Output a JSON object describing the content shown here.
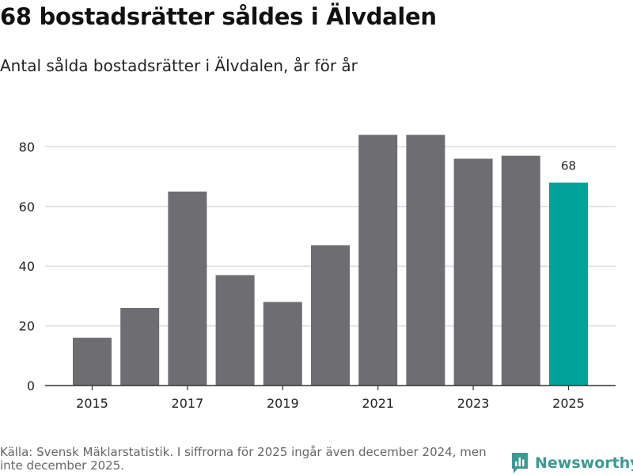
{
  "header": {
    "title": "68 bostadsrätter såldes i Älvdalen",
    "subtitle": "Antal sålda bostadsrätter i Älvdalen, år för år"
  },
  "footer": {
    "source": "Källa: Svensk Mäklarstatistik. I siffrorna för 2025 ingår även december 2024, men inte december 2025.",
    "brand": "Newsworthy"
  },
  "colors": {
    "bar": "#6d6d72",
    "highlight": "#00a39a",
    "grid": "#dddddd",
    "axis": "#333333",
    "brand": "#3c9a92"
  },
  "chart_data": {
    "type": "bar",
    "title": "68 bostadsrätter såldes i Älvdalen",
    "subtitle": "Antal sålda bostadsrätter i Älvdalen, år för år",
    "xlabel": "",
    "ylabel": "",
    "categories": [
      "2015",
      "2016",
      "2017",
      "2018",
      "2019",
      "2020",
      "2021",
      "2022",
      "2023",
      "2024",
      "2025"
    ],
    "values": [
      16,
      26,
      65,
      37,
      28,
      47,
      84,
      84,
      76,
      77,
      68
    ],
    "x_tick_labels": [
      "2015",
      "2017",
      "2019",
      "2021",
      "2023",
      "2025"
    ],
    "y_ticks": [
      0,
      20,
      40,
      60,
      80
    ],
    "ylim": [
      0,
      90
    ],
    "grid": true,
    "highlight_category": "2025",
    "data_labels": [
      {
        "category": "2025",
        "text": "68"
      }
    ]
  }
}
